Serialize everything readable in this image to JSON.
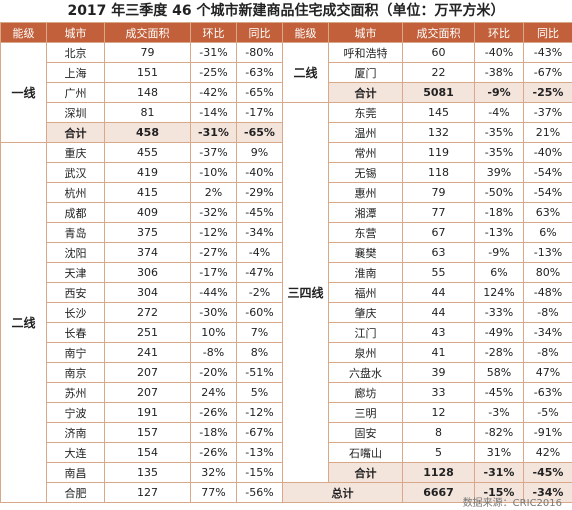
{
  "title": "2017 年三季度 46 个城市新建商品住宅成交面积（单位：万平方米）",
  "headers": [
    "能级",
    "城市",
    "成交面积",
    "环比",
    "同比",
    "能级",
    "城市",
    "成交面积",
    "环比",
    "同比"
  ],
  "left": {
    "tier1_label": "一线",
    "tier1_rows": [
      [
        "北京",
        "79",
        "-31%",
        "-80%"
      ],
      [
        "上海",
        "151",
        "-25%",
        "-63%"
      ],
      [
        "广州",
        "148",
        "-42%",
        "-65%"
      ],
      [
        "深圳",
        "81",
        "-14%",
        "-17%"
      ]
    ],
    "tier1_total": [
      "合计",
      "458",
      "-31%",
      "-65%"
    ],
    "tier2_label": "二线",
    "tier2_rows": [
      [
        "重庆",
        "455",
        "-37%",
        "9%"
      ],
      [
        "武汉",
        "419",
        "-10%",
        "-40%"
      ],
      [
        "杭州",
        "415",
        "2%",
        "-29%"
      ],
      [
        "成都",
        "409",
        "-32%",
        "-45%"
      ],
      [
        "青岛",
        "375",
        "-12%",
        "-34%"
      ],
      [
        "沈阳",
        "374",
        "-27%",
        "-4%"
      ],
      [
        "天津",
        "306",
        "-17%",
        "-47%"
      ],
      [
        "西安",
        "304",
        "-44%",
        "-2%"
      ],
      [
        "长沙",
        "272",
        "-30%",
        "-60%"
      ],
      [
        "长春",
        "251",
        "10%",
        "7%"
      ],
      [
        "南宁",
        "241",
        "-8%",
        "8%"
      ],
      [
        "南京",
        "207",
        "-20%",
        "-51%"
      ],
      [
        "苏州",
        "207",
        "24%",
        "5%"
      ],
      [
        "宁波",
        "191",
        "-26%",
        "-12%"
      ],
      [
        "济南",
        "157",
        "-18%",
        "-67%"
      ],
      [
        "大连",
        "154",
        "-26%",
        "-13%"
      ],
      [
        "南昌",
        "135",
        "32%",
        "-15%"
      ],
      [
        "合肥",
        "127",
        "77%",
        "-56%"
      ]
    ]
  },
  "right": {
    "tier2_label": "二线",
    "tier2_rows": [
      [
        "呼和浩特",
        "60",
        "-40%",
        "-43%"
      ],
      [
        "厦门",
        "22",
        "-38%",
        "-67%"
      ]
    ],
    "tier2_total": [
      "合计",
      "5081",
      "-9%",
      "-25%"
    ],
    "tier3_label": "三四线",
    "tier3_rows": [
      [
        "东莞",
        "145",
        "-4%",
        "-37%"
      ],
      [
        "温州",
        "132",
        "-35%",
        "21%"
      ],
      [
        "常州",
        "119",
        "-35%",
        "-40%"
      ],
      [
        "无锡",
        "118",
        "39%",
        "-54%"
      ],
      [
        "惠州",
        "79",
        "-50%",
        "-54%"
      ],
      [
        "湘潭",
        "77",
        "-18%",
        "63%"
      ],
      [
        "东营",
        "67",
        "-13%",
        "6%"
      ],
      [
        "襄樊",
        "63",
        "-9%",
        "-13%"
      ],
      [
        "淮南",
        "55",
        "6%",
        "80%"
      ],
      [
        "福州",
        "44",
        "124%",
        "-48%"
      ],
      [
        "肇庆",
        "44",
        "-33%",
        "-8%"
      ],
      [
        "江门",
        "43",
        "-49%",
        "-34%"
      ],
      [
        "泉州",
        "41",
        "-28%",
        "-8%"
      ],
      [
        "六盘水",
        "39",
        "58%",
        "47%"
      ],
      [
        "廊坊",
        "33",
        "-45%",
        "-63%"
      ],
      [
        "三明",
        "12",
        "-3%",
        "-5%"
      ],
      [
        "固安",
        "8",
        "-82%",
        "-91%"
      ],
      [
        "石嘴山",
        "5",
        "31%",
        "42%"
      ]
    ],
    "tier3_total": [
      "合计",
      "1128",
      "-31%",
      "-45%"
    ],
    "grand_total": [
      "总计",
      "6667",
      "-15%",
      "-34%"
    ]
  },
  "source": "数据来源：CRIC2016",
  "colors": {
    "header_bg": "#c1603a",
    "total_bg": "#f3e4dc",
    "border": "#d8a888"
  }
}
